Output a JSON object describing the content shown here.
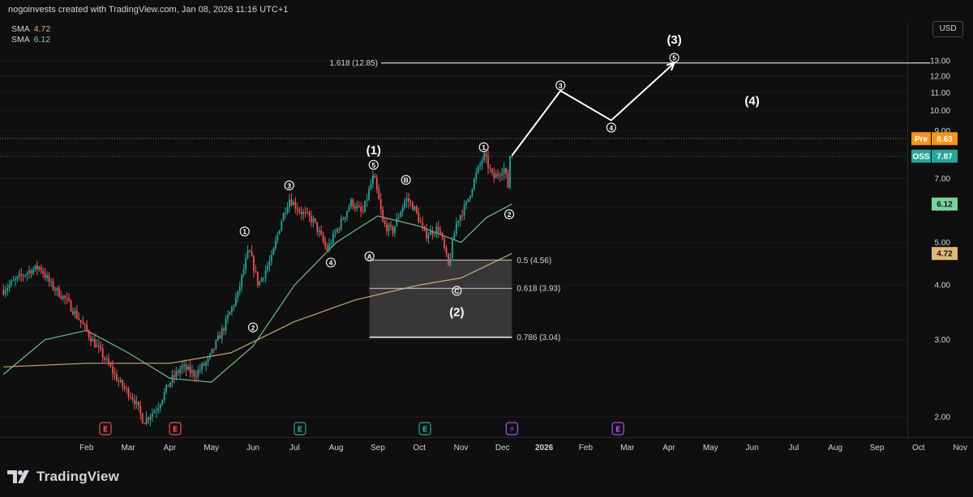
{
  "header": {
    "credit": "nogoinvests created with TradingView.com, Jan 08, 2026 11:16 UTC+1"
  },
  "indicators": [
    {
      "label": "SMA",
      "value": "4.72",
      "color": "#e0b87a"
    },
    {
      "label": "SMA",
      "value": "6.12",
      "color": "#7cd29a"
    }
  ],
  "currency": "USD",
  "logo_text": "TradingView",
  "chart_data": {
    "type": "candlestick",
    "x_axis": {
      "tick_labels": [
        "Feb",
        "Mar",
        "Apr",
        "May",
        "Jun",
        "Jul",
        "Aug",
        "Sep",
        "Oct",
        "Nov",
        "Dec",
        "2026",
        "Feb",
        "Mar",
        "Apr",
        "May",
        "Jun",
        "Jul",
        "Aug",
        "Sep",
        "Oct",
        "Nov"
      ],
      "range": [
        "2025-01",
        "2026-11"
      ]
    },
    "y_axis": {
      "ticks": [
        2,
        3,
        4,
        5,
        6,
        7,
        8,
        9,
        10,
        11,
        12,
        13
      ],
      "tick_labels": [
        "2.00",
        "3.00",
        "4.00",
        "5.00",
        "6.00",
        "7.00",
        "8.00",
        "9.00",
        "10.00",
        "11.00",
        "12.00",
        "13.00"
      ],
      "range": [
        1.6,
        14.5
      ]
    },
    "price_badges": [
      {
        "label": "Pre",
        "value": "8.63",
        "price": 8.63,
        "color": "#f7931a",
        "line": "dotted"
      },
      {
        "label": "OSS",
        "value": "7.87",
        "price": 7.87,
        "color": "#26a69a",
        "line": "dotted"
      },
      {
        "label": "",
        "value": "6.12",
        "price": 6.12,
        "color": "#7cd29a"
      },
      {
        "label": "",
        "value": "4.72",
        "price": 4.72,
        "color": "#e0b87a"
      }
    ],
    "price_path": [
      [
        "2025-01-01",
        3.9
      ],
      [
        "2025-01-10",
        4.1
      ],
      [
        "2025-01-20",
        4.3
      ],
      [
        "2025-01-28",
        4.4
      ],
      [
        "2025-02-05",
        4.0
      ],
      [
        "2025-02-15",
        3.7
      ],
      [
        "2025-02-25",
        3.3
      ],
      [
        "2025-03-05",
        3.0
      ],
      [
        "2025-03-15",
        2.7
      ],
      [
        "2025-03-25",
        2.4
      ],
      [
        "2025-04-05",
        2.2
      ],
      [
        "2025-04-12",
        1.95
      ],
      [
        "2025-04-22",
        2.1
      ],
      [
        "2025-05-01",
        2.4
      ],
      [
        "2025-05-10",
        2.6
      ],
      [
        "2025-05-20",
        2.5
      ],
      [
        "2025-05-30",
        2.7
      ],
      [
        "2025-06-10",
        3.2
      ],
      [
        "2025-06-20",
        3.8
      ],
      [
        "2025-06-28",
        4.8
      ],
      [
        "2025-07-05",
        4.0
      ],
      [
        "2025-07-15",
        4.6
      ],
      [
        "2025-07-22",
        5.6
      ],
      [
        "2025-07-28",
        6.3
      ],
      [
        "2025-08-05",
        5.9
      ],
      [
        "2025-08-15",
        5.6
      ],
      [
        "2025-08-25",
        4.8
      ],
      [
        "2025-09-05",
        5.6
      ],
      [
        "2025-09-12",
        6.2
      ],
      [
        "2025-09-20",
        5.8
      ],
      [
        "2025-09-28",
        7.1
      ],
      [
        "2025-10-05",
        5.5
      ],
      [
        "2025-10-12",
        5.3
      ],
      [
        "2025-10-22",
        6.3
      ],
      [
        "2025-10-28",
        6.0
      ],
      [
        "2025-11-05",
        5.2
      ],
      [
        "2025-11-15",
        5.4
      ],
      [
        "2025-11-22",
        4.4
      ],
      [
        "2025-11-28",
        5.6
      ],
      [
        "2025-12-05",
        6.1
      ],
      [
        "2025-12-12",
        7.1
      ],
      [
        "2025-12-18",
        7.9
      ],
      [
        "2025-12-25",
        7.0
      ],
      [
        "2026-01-02",
        7.4
      ],
      [
        "2026-01-06",
        6.5
      ],
      [
        "2026-01-08",
        7.87
      ]
    ],
    "sma_fast": {
      "name": "SMA",
      "value": 6.12,
      "color": "#7cd29a",
      "points": [
        [
          "2025-01-01",
          2.5
        ],
        [
          "2025-02-01",
          3.0
        ],
        [
          "2025-03-01",
          3.15
        ],
        [
          "2025-04-01",
          2.8
        ],
        [
          "2025-05-01",
          2.45
        ],
        [
          "2025-06-01",
          2.4
        ],
        [
          "2025-07-01",
          2.9
        ],
        [
          "2025-08-01",
          4.0
        ],
        [
          "2025-09-01",
          5.0
        ],
        [
          "2025-10-01",
          5.75
        ],
        [
          "2025-11-01",
          5.45
        ],
        [
          "2025-12-01",
          5.0
        ],
        [
          "2025-12-20",
          5.7
        ],
        [
          "2026-01-08",
          6.12
        ]
      ]
    },
    "sma_slow": {
      "name": "SMA",
      "value": 4.72,
      "color": "#e0b87a",
      "points": [
        [
          "2025-01-01",
          2.6
        ],
        [
          "2025-03-01",
          2.65
        ],
        [
          "2025-05-01",
          2.65
        ],
        [
          "2025-06-15",
          2.8
        ],
        [
          "2025-08-01",
          3.3
        ],
        [
          "2025-09-15",
          3.7
        ],
        [
          "2025-11-01",
          4.0
        ],
        [
          "2025-12-01",
          4.15
        ],
        [
          "2026-01-08",
          4.72
        ]
      ]
    },
    "projection": {
      "color": "#ffffff",
      "points": [
        [
          "2026-01-08",
          7.9
        ],
        [
          "2026-02-12",
          11.1
        ],
        [
          "2026-03-20",
          9.5
        ],
        [
          "2026-05-05",
          12.85
        ]
      ]
    },
    "fib_levels": [
      {
        "label": "0.5 (4.56)",
        "price": 4.56
      },
      {
        "label": "0.618 (3.93)",
        "price": 3.93
      },
      {
        "label": "0.786 (3.04)",
        "price": 3.04
      },
      {
        "label": "1.618 (12.85)",
        "price": 12.85
      }
    ],
    "fib_zone": {
      "date_from": "2025-09-25",
      "date_to": "2026-01-08",
      "price_from": 3.04,
      "price_to": 4.56
    },
    "wave_labels": [
      {
        "text": "(1)",
        "date": "2025-09-28",
        "price": 7.95,
        "kind": "major"
      },
      {
        "text": "(2)",
        "date": "2025-11-28",
        "price": 3.4,
        "kind": "major"
      },
      {
        "text": "(3)",
        "date": "2026-05-05",
        "price": 14.2,
        "kind": "major"
      },
      {
        "text": "(4)",
        "date": "2026-07-01",
        "price": 10.3,
        "kind": "major"
      },
      {
        "text": "1",
        "date": "2025-06-25",
        "price": 5.3,
        "kind": "circle"
      },
      {
        "text": "2",
        "date": "2025-07-01",
        "price": 3.2,
        "kind": "circle"
      },
      {
        "text": "3",
        "date": "2025-07-28",
        "price": 6.75,
        "kind": "circle"
      },
      {
        "text": "4",
        "date": "2025-08-28",
        "price": 4.5,
        "kind": "circle"
      },
      {
        "text": "5",
        "date": "2025-09-28",
        "price": 7.52,
        "kind": "circle"
      },
      {
        "text": "A",
        "date": "2025-09-25",
        "price": 4.65,
        "kind": "circle"
      },
      {
        "text": "B",
        "date": "2025-10-22",
        "price": 6.95,
        "kind": "circle"
      },
      {
        "text": "C",
        "date": "2025-11-28",
        "price": 3.88,
        "kind": "circle"
      },
      {
        "text": "1",
        "date": "2025-12-18",
        "price": 8.25,
        "kind": "circle"
      },
      {
        "text": "2",
        "date": "2026-01-06",
        "price": 5.8,
        "kind": "circle"
      },
      {
        "text": "3",
        "date": "2026-02-12",
        "price": 11.42,
        "kind": "circle"
      },
      {
        "text": "4",
        "date": "2026-03-20",
        "price": 9.15,
        "kind": "circle"
      },
      {
        "text": "5",
        "date": "2026-05-05",
        "price": 13.2,
        "kind": "circle"
      }
    ],
    "event_markers": [
      {
        "date": "2025-03-15",
        "letter": "E",
        "color": "#e5534b"
      },
      {
        "date": "2025-05-05",
        "letter": "E",
        "color": "#e5534b"
      },
      {
        "date": "2025-08-05",
        "letter": "E",
        "color": "#26a69a"
      },
      {
        "date": "2025-11-05",
        "letter": "E",
        "color": "#26a69a"
      },
      {
        "date": "2026-01-08",
        "letter": "⚡",
        "color": "#b44ef0"
      },
      {
        "date": "2026-03-25",
        "letter": "E",
        "color": "#b44ef0"
      }
    ]
  }
}
